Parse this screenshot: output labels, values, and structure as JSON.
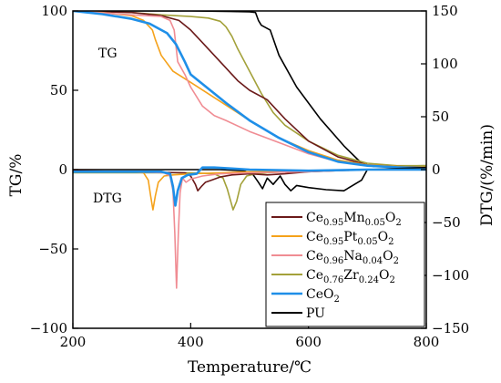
{
  "chart_data": {
    "type": "line",
    "xlabel": "Temperature/℃",
    "ylabel_left": "TG/%",
    "ylabel_right": "DTG/(%/min)",
    "xlim": [
      200,
      800
    ],
    "ylim_left": [
      -100,
      100
    ],
    "ylim_right": [
      -150,
      150
    ],
    "x_ticks": [
      200,
      400,
      600,
      800
    ],
    "y_ticks_left": [
      -100,
      -50,
      0,
      50,
      100
    ],
    "y_ticks_right": [
      -150,
      -100,
      -50,
      0,
      50,
      100,
      150
    ],
    "annotations": {
      "tg": "TG",
      "dtg": "DTG"
    },
    "grid": false,
    "legend_position": "bottom-right",
    "legend": [
      {
        "key": "mn",
        "base": "Ce",
        "sub1": "0.95",
        "mid": "Mn",
        "sub2": "0.05",
        "tail": "O",
        "sub3": "2",
        "color": "#6b1a1a"
      },
      {
        "key": "pt",
        "base": "Ce",
        "sub1": "0.95",
        "mid": "Pt",
        "sub2": "0.05",
        "tail": "O",
        "sub3": "2",
        "color": "#f5a21b"
      },
      {
        "key": "na",
        "base": "Ce",
        "sub1": "0.96",
        "mid": "Na",
        "sub2": "0.04",
        "tail": "O",
        "sub3": "2",
        "color": "#f08c93"
      },
      {
        "key": "zr",
        "base": "Ce",
        "sub1": "0.76",
        "mid": "Zr",
        "sub2": "0.24",
        "tail": "O",
        "sub3": "2",
        "color": "#a3a13a"
      },
      {
        "key": "ceo2",
        "base": "CeO",
        "sub1": "2",
        "mid": "",
        "sub2": "",
        "tail": "",
        "sub3": "",
        "color": "#1f8fe8"
      },
      {
        "key": "pu",
        "base": "PU",
        "sub1": "",
        "mid": "",
        "sub2": "",
        "tail": "",
        "sub3": "",
        "color": "#000000"
      }
    ],
    "series": [
      {
        "key": "pu",
        "axis": "left",
        "color": "#000000",
        "width": 1.6,
        "x": [
          200,
          300,
          400,
          500,
          510,
          515,
          520,
          535,
          550,
          580,
          620,
          660,
          690,
          710,
          750,
          800
        ],
        "y": [
          100,
          100,
          100,
          99.5,
          99,
          94,
          91,
          88,
          72,
          52,
          32,
          15,
          4,
          2,
          2.3,
          2.5
        ]
      },
      {
        "key": "zr",
        "axis": "left",
        "color": "#a3a13a",
        "width": 1.6,
        "x": [
          200,
          300,
          350,
          400,
          430,
          450,
          460,
          470,
          480,
          500,
          520,
          540,
          560,
          600,
          650,
          700,
          750,
          800
        ],
        "y": [
          100,
          99,
          97.5,
          96.5,
          95.5,
          93.5,
          90,
          84,
          76,
          62,
          48,
          36,
          28,
          18,
          9,
          4,
          2.5,
          2.5
        ]
      },
      {
        "key": "mn",
        "axis": "left",
        "color": "#6b1a1a",
        "width": 1.6,
        "x": [
          200,
          300,
          350,
          380,
          400,
          420,
          440,
          460,
          480,
          500,
          530,
          560,
          600,
          650,
          700,
          750,
          800
        ],
        "y": [
          100,
          99,
          97,
          94,
          88,
          80,
          72,
          64,
          56,
          50,
          44,
          32,
          18,
          8,
          3,
          2,
          1.5
        ]
      },
      {
        "key": "pt",
        "axis": "left",
        "color": "#f5a21b",
        "width": 1.6,
        "x": [
          200,
          250,
          300,
          320,
          335,
          340,
          350,
          370,
          400,
          450,
          500,
          550,
          600,
          650,
          700,
          750,
          800
        ],
        "y": [
          100,
          99,
          97,
          94,
          88,
          82,
          72,
          62,
          55,
          43,
          31,
          20,
          12,
          6,
          3,
          2,
          1.5
        ]
      },
      {
        "key": "na",
        "axis": "left",
        "color": "#f08c93",
        "width": 1.6,
        "x": [
          200,
          300,
          350,
          365,
          372,
          378,
          390,
          400,
          420,
          440,
          460,
          500,
          550,
          600,
          650,
          700,
          750,
          800
        ],
        "y": [
          100,
          97.5,
          96.5,
          94,
          88,
          68,
          60,
          52,
          40,
          34,
          31,
          24,
          17,
          10,
          5,
          2.5,
          1.5,
          1
        ]
      },
      {
        "key": "ceo2",
        "axis": "left",
        "color": "#1f8fe8",
        "width": 2.6,
        "x": [
          200,
          250,
          300,
          330,
          360,
          375,
          390,
          400,
          430,
          460,
          500,
          550,
          600,
          650,
          700,
          750,
          800
        ],
        "y": [
          100,
          98,
          95,
          92,
          86,
          79,
          68,
          60,
          51,
          42,
          31,
          20,
          11,
          5,
          2.5,
          1.5,
          1
        ]
      },
      {
        "key": "pu_dtg",
        "axis": "right",
        "color": "#000000",
        "width": 1.6,
        "x": [
          200,
          300,
          450,
          490,
          505,
          515,
          522,
          530,
          540,
          552,
          560,
          570,
          580,
          600,
          630,
          660,
          690,
          700,
          750,
          800
        ],
        "y": [
          0,
          0,
          0,
          -1,
          -4,
          -12,
          -18,
          -8,
          -14,
          -6,
          -14,
          -20,
          -15,
          -17,
          -19,
          -20,
          -10,
          0,
          1,
          2
        ]
      },
      {
        "key": "zr_dtg",
        "axis": "right",
        "color": "#a3a13a",
        "width": 1.6,
        "x": [
          200,
          300,
          400,
          440,
          455,
          462,
          468,
          472,
          478,
          485,
          495,
          510,
          530,
          560,
          600,
          700,
          800
        ],
        "y": [
          -3,
          -3,
          -3,
          -4,
          -8,
          -18,
          -30,
          -38,
          -30,
          -14,
          -6,
          -4,
          -3,
          -2,
          -1,
          0,
          0
        ]
      },
      {
        "key": "mn_dtg",
        "axis": "right",
        "color": "#6b1a1a",
        "width": 1.6,
        "x": [
          200,
          300,
          390,
          400,
          408,
          412,
          418,
          425,
          435,
          450,
          470,
          500,
          530,
          560,
          600,
          700,
          800
        ],
        "y": [
          -1,
          -2,
          -3,
          -6,
          -14,
          -20,
          -16,
          -12,
          -10,
          -7,
          -5,
          -4,
          -5,
          -4,
          -2,
          0,
          0
        ]
      },
      {
        "key": "pt_dtg",
        "axis": "right",
        "color": "#f5a21b",
        "width": 1.6,
        "x": [
          200,
          300,
          320,
          328,
          332,
          336,
          340,
          345,
          355,
          370,
          400,
          450,
          500,
          600,
          700,
          800
        ],
        "y": [
          -2,
          -2,
          -3,
          -10,
          -25,
          -38,
          -25,
          -12,
          -6,
          -5,
          -4,
          -3,
          -2,
          -1,
          0,
          0
        ]
      },
      {
        "key": "na_dtg",
        "axis": "right",
        "color": "#f08c93",
        "width": 1.6,
        "x": [
          200,
          300,
          355,
          365,
          370,
          373,
          376,
          379,
          382,
          386,
          392,
          400,
          420,
          450,
          500,
          600,
          700,
          800
        ],
        "y": [
          -2,
          -2,
          -3,
          -6,
          -20,
          -60,
          -112,
          -60,
          -22,
          -8,
          -12,
          -9,
          -6,
          -4,
          -3,
          -2,
          0,
          0
        ]
      },
      {
        "key": "ceo2_dtg",
        "axis": "right",
        "color": "#1f8fe8",
        "width": 2.6,
        "x": [
          200,
          300,
          350,
          365,
          370,
          374,
          378,
          385,
          395,
          410,
          420,
          440,
          470,
          500,
          600,
          700,
          800
        ],
        "y": [
          -2,
          -2,
          -2,
          -4,
          -16,
          -34,
          -20,
          -8,
          -5,
          -4,
          2,
          2,
          1,
          0,
          -1,
          0,
          0
        ]
      }
    ]
  }
}
